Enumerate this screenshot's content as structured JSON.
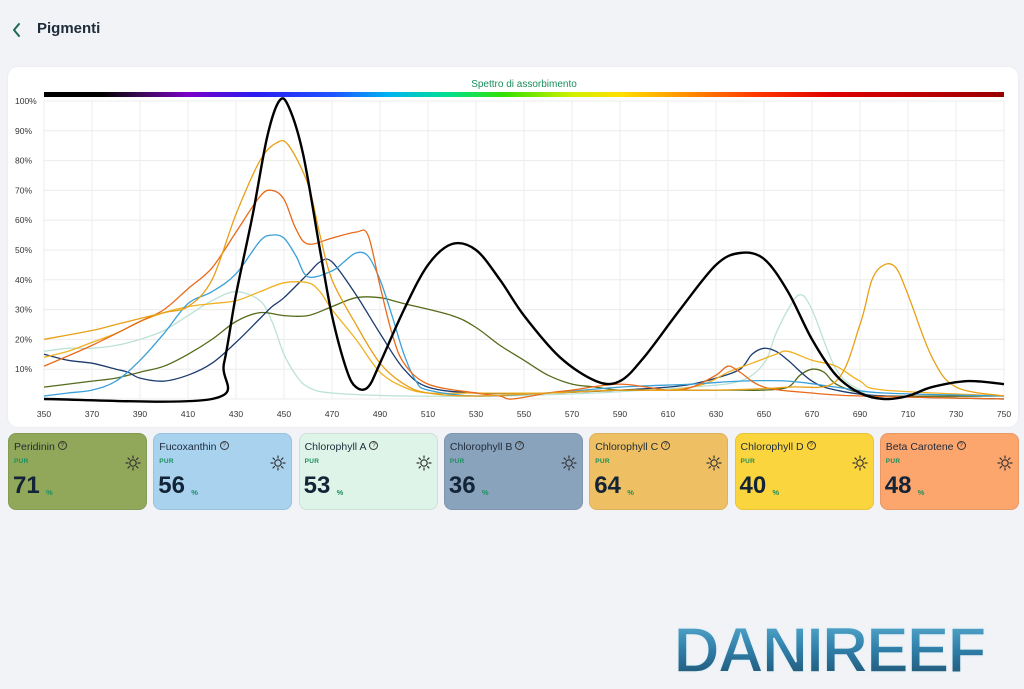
{
  "header": {
    "title": "Pigmenti",
    "back_icon": "chevron-left-icon"
  },
  "chart_data": {
    "type": "line",
    "title": "Spettro di assorbimento",
    "x_ticks": [
      350,
      370,
      390,
      410,
      430,
      450,
      470,
      490,
      510,
      530,
      550,
      570,
      590,
      610,
      630,
      650,
      670,
      690,
      710,
      730,
      750
    ],
    "y_ticks": [
      "100%",
      "90%",
      "80%",
      "70%",
      "60%",
      "50%",
      "40%",
      "30%",
      "20%",
      "10%",
      "0%"
    ],
    "xlim": [
      350,
      750
    ],
    "ylim": [
      0,
      100
    ],
    "grid": true,
    "series": [
      {
        "color": "#000000",
        "width": 2.4,
        "points": [
          [
            350,
            0
          ],
          [
            420,
            0
          ],
          [
            425,
            12
          ],
          [
            430,
            35
          ],
          [
            437,
            62
          ],
          [
            443,
            88
          ],
          [
            448,
            100
          ],
          [
            452,
            98
          ],
          [
            458,
            82
          ],
          [
            465,
            50
          ],
          [
            470,
            28
          ],
          [
            476,
            10
          ],
          [
            480,
            4
          ],
          [
            485,
            4
          ],
          [
            490,
            12
          ],
          [
            500,
            30
          ],
          [
            510,
            45
          ],
          [
            520,
            52
          ],
          [
            530,
            50
          ],
          [
            540,
            40
          ],
          [
            550,
            28
          ],
          [
            565,
            14
          ],
          [
            580,
            6
          ],
          [
            590,
            6
          ],
          [
            600,
            14
          ],
          [
            615,
            30
          ],
          [
            630,
            45
          ],
          [
            640,
            49
          ],
          [
            650,
            47
          ],
          [
            660,
            36
          ],
          [
            670,
            20
          ],
          [
            680,
            8
          ],
          [
            690,
            2
          ],
          [
            700,
            0
          ],
          [
            710,
            1
          ],
          [
            720,
            4
          ],
          [
            735,
            6
          ],
          [
            750,
            5
          ]
        ]
      },
      {
        "color": "#e8a015",
        "width": 1.3,
        "points": [
          [
            350,
            20
          ],
          [
            370,
            23
          ],
          [
            380,
            25
          ],
          [
            400,
            29
          ],
          [
            410,
            31
          ],
          [
            420,
            40
          ],
          [
            430,
            62
          ],
          [
            440,
            80
          ],
          [
            447,
            86
          ],
          [
            452,
            85
          ],
          [
            460,
            72
          ],
          [
            465,
            55
          ],
          [
            470,
            40
          ],
          [
            480,
            25
          ],
          [
            490,
            12
          ],
          [
            500,
            5
          ],
          [
            510,
            2
          ],
          [
            530,
            1
          ],
          [
            560,
            2
          ],
          [
            590,
            3
          ],
          [
            630,
            3
          ],
          [
            660,
            4
          ],
          [
            680,
            6
          ],
          [
            690,
            25
          ],
          [
            695,
            40
          ],
          [
            700,
            45
          ],
          [
            705,
            44
          ],
          [
            710,
            35
          ],
          [
            720,
            14
          ],
          [
            730,
            4
          ],
          [
            750,
            1
          ]
        ]
      },
      {
        "color": "#e86a1a",
        "width": 1.3,
        "points": [
          [
            350,
            11
          ],
          [
            370,
            18
          ],
          [
            390,
            26
          ],
          [
            400,
            30
          ],
          [
            410,
            37
          ],
          [
            420,
            44
          ],
          [
            430,
            56
          ],
          [
            440,
            68
          ],
          [
            445,
            70
          ],
          [
            450,
            67
          ],
          [
            455,
            57
          ],
          [
            460,
            52
          ],
          [
            470,
            54
          ],
          [
            480,
            56
          ],
          [
            485,
            55
          ],
          [
            490,
            38
          ],
          [
            495,
            22
          ],
          [
            500,
            12
          ],
          [
            510,
            5
          ],
          [
            530,
            2
          ],
          [
            540,
            1
          ],
          [
            545,
            0
          ],
          [
            560,
            2
          ],
          [
            570,
            3
          ],
          [
            590,
            5
          ],
          [
            610,
            3
          ],
          [
            620,
            4
          ],
          [
            630,
            8
          ],
          [
            635,
            11
          ],
          [
            640,
            9
          ],
          [
            650,
            4
          ],
          [
            670,
            2
          ],
          [
            690,
            1
          ],
          [
            750,
            0
          ]
        ]
      },
      {
        "color": "#3aa0d8",
        "width": 1.3,
        "points": [
          [
            350,
            1
          ],
          [
            360,
            2
          ],
          [
            370,
            3
          ],
          [
            380,
            6
          ],
          [
            390,
            13
          ],
          [
            400,
            22
          ],
          [
            410,
            32
          ],
          [
            420,
            36
          ],
          [
            430,
            42
          ],
          [
            440,
            53
          ],
          [
            445,
            55
          ],
          [
            450,
            54
          ],
          [
            455,
            48
          ],
          [
            460,
            41
          ],
          [
            470,
            43
          ],
          [
            475,
            46
          ],
          [
            480,
            49
          ],
          [
            485,
            48
          ],
          [
            490,
            40
          ],
          [
            495,
            28
          ],
          [
            500,
            15
          ],
          [
            505,
            6
          ],
          [
            510,
            3
          ],
          [
            530,
            1
          ],
          [
            560,
            2
          ],
          [
            590,
            4
          ],
          [
            620,
            5
          ],
          [
            640,
            6
          ],
          [
            660,
            6
          ],
          [
            680,
            4
          ],
          [
            700,
            2
          ],
          [
            750,
            1
          ]
        ]
      },
      {
        "color": "#f0b020",
        "width": 1.3,
        "points": [
          [
            350,
            14
          ],
          [
            360,
            16
          ],
          [
            370,
            19
          ],
          [
            380,
            22
          ],
          [
            390,
            26
          ],
          [
            400,
            29
          ],
          [
            410,
            31
          ],
          [
            420,
            32
          ],
          [
            430,
            33
          ],
          [
            440,
            36
          ],
          [
            450,
            39
          ],
          [
            460,
            39
          ],
          [
            465,
            36
          ],
          [
            470,
            30
          ],
          [
            480,
            20
          ],
          [
            490,
            9
          ],
          [
            500,
            4
          ],
          [
            510,
            2
          ],
          [
            530,
            2
          ],
          [
            560,
            2
          ],
          [
            590,
            3
          ],
          [
            610,
            3
          ],
          [
            625,
            5
          ],
          [
            635,
            9
          ],
          [
            645,
            12
          ],
          [
            655,
            15
          ],
          [
            660,
            16
          ],
          [
            670,
            13
          ],
          [
            680,
            11
          ],
          [
            690,
            6
          ],
          [
            700,
            3
          ],
          [
            750,
            1
          ]
        ]
      },
      {
        "color": "#1d3b6e",
        "width": 1.3,
        "points": [
          [
            350,
            15
          ],
          [
            360,
            13
          ],
          [
            370,
            12
          ],
          [
            380,
            10
          ],
          [
            385,
            9
          ],
          [
            390,
            7
          ],
          [
            400,
            6
          ],
          [
            410,
            8
          ],
          [
            420,
            12
          ],
          [
            430,
            19
          ],
          [
            440,
            27
          ],
          [
            445,
            31
          ],
          [
            450,
            34
          ],
          [
            460,
            42
          ],
          [
            465,
            46
          ],
          [
            470,
            46
          ],
          [
            480,
            35
          ],
          [
            490,
            22
          ],
          [
            500,
            10
          ],
          [
            510,
            4
          ],
          [
            530,
            2
          ],
          [
            560,
            2
          ],
          [
            590,
            3
          ],
          [
            610,
            4
          ],
          [
            620,
            5
          ],
          [
            630,
            7
          ],
          [
            640,
            10
          ],
          [
            645,
            15
          ],
          [
            650,
            17
          ],
          [
            655,
            16
          ],
          [
            660,
            13
          ],
          [
            670,
            6
          ],
          [
            680,
            3
          ],
          [
            700,
            1
          ],
          [
            750,
            0
          ]
        ]
      },
      {
        "color": "#556b1a",
        "width": 1.3,
        "points": [
          [
            350,
            4
          ],
          [
            360,
            5
          ],
          [
            370,
            6
          ],
          [
            380,
            7
          ],
          [
            390,
            9
          ],
          [
            400,
            11
          ],
          [
            410,
            15
          ],
          [
            420,
            20
          ],
          [
            430,
            26
          ],
          [
            440,
            29
          ],
          [
            450,
            28
          ],
          [
            460,
            28
          ],
          [
            470,
            31
          ],
          [
            480,
            34
          ],
          [
            490,
            34
          ],
          [
            500,
            32
          ],
          [
            520,
            28
          ],
          [
            530,
            24
          ],
          [
            540,
            18
          ],
          [
            550,
            13
          ],
          [
            560,
            8
          ],
          [
            570,
            5
          ],
          [
            580,
            4
          ],
          [
            590,
            3
          ],
          [
            610,
            3
          ],
          [
            630,
            3
          ],
          [
            640,
            3
          ],
          [
            650,
            3
          ],
          [
            660,
            4
          ],
          [
            665,
            8
          ],
          [
            670,
            10
          ],
          [
            675,
            9
          ],
          [
            680,
            5
          ],
          [
            690,
            2
          ],
          [
            700,
            1
          ],
          [
            750,
            1
          ]
        ]
      },
      {
        "color": "#bde2d4",
        "width": 1.3,
        "points": [
          [
            350,
            16
          ],
          [
            360,
            17
          ],
          [
            370,
            17
          ],
          [
            380,
            18
          ],
          [
            390,
            20
          ],
          [
            400,
            23
          ],
          [
            410,
            28
          ],
          [
            420,
            33
          ],
          [
            430,
            36
          ],
          [
            440,
            33
          ],
          [
            445,
            26
          ],
          [
            450,
            15
          ],
          [
            455,
            8
          ],
          [
            460,
            4
          ],
          [
            470,
            2
          ],
          [
            500,
            1
          ],
          [
            540,
            1
          ],
          [
            580,
            2
          ],
          [
            600,
            3
          ],
          [
            620,
            4
          ],
          [
            640,
            6
          ],
          [
            650,
            12
          ],
          [
            655,
            22
          ],
          [
            660,
            30
          ],
          [
            665,
            35
          ],
          [
            670,
            30
          ],
          [
            680,
            10
          ],
          [
            690,
            3
          ],
          [
            700,
            1
          ],
          [
            750,
            0
          ]
        ]
      }
    ]
  },
  "pigments": [
    {
      "name": "Peridinin",
      "pur_label": "PUR",
      "value": "71",
      "unit": "%",
      "bg": "#91a85a"
    },
    {
      "name": "Fucoxanthin",
      "pur_label": "PUR",
      "value": "56",
      "unit": "%",
      "bg": "#a9d2ef"
    },
    {
      "name": "Chlorophyll A",
      "pur_label": "PUR",
      "value": "53",
      "unit": "%",
      "bg": "#dff4e8"
    },
    {
      "name": "Chlorophyll B",
      "pur_label": "PUR",
      "value": "36",
      "unit": "%",
      "bg": "#8aa3bd"
    },
    {
      "name": "Chlorophyll C",
      "pur_label": "PUR",
      "value": "64",
      "unit": "%",
      "bg": "#eec063"
    },
    {
      "name": "Chlorophyll D",
      "pur_label": "PUR",
      "value": "40",
      "unit": "%",
      "bg": "#fbd53e"
    },
    {
      "name": "Beta Carotene",
      "pur_label": "PUR",
      "value": "48",
      "unit": "%",
      "bg": "#fca56d"
    }
  ],
  "watermark": {
    "text": "DANIREEF"
  }
}
